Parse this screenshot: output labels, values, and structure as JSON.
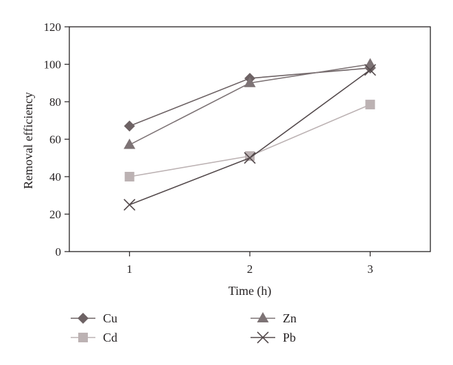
{
  "chart_data": {
    "type": "line",
    "title": "",
    "xlabel": "Time (h)",
    "ylabel": "Removal efficiency",
    "x": [
      1,
      2,
      3
    ],
    "xlim": [
      0.5,
      3.5
    ],
    "ylim": [
      0,
      120
    ],
    "x_ticks": [
      "1",
      "2",
      "3"
    ],
    "y_ticks": [
      "0",
      "20",
      "40",
      "60",
      "80",
      "100",
      "120"
    ],
    "grid": false,
    "legend_position": "bottom",
    "series": [
      {
        "name": "Cu",
        "values": [
          67,
          92.5,
          98
        ],
        "color": "#6d6264",
        "marker": "diamond"
      },
      {
        "name": "Zn",
        "values": [
          57,
          90,
          100
        ],
        "color": "#7d7375",
        "marker": "triangle"
      },
      {
        "name": "Cd",
        "values": [
          40,
          51,
          78.5
        ],
        "color": "#bcb2b3",
        "marker": "square"
      },
      {
        "name": "Pb",
        "values": [
          25,
          50,
          97
        ],
        "color": "#544a4c",
        "marker": "x"
      }
    ]
  }
}
